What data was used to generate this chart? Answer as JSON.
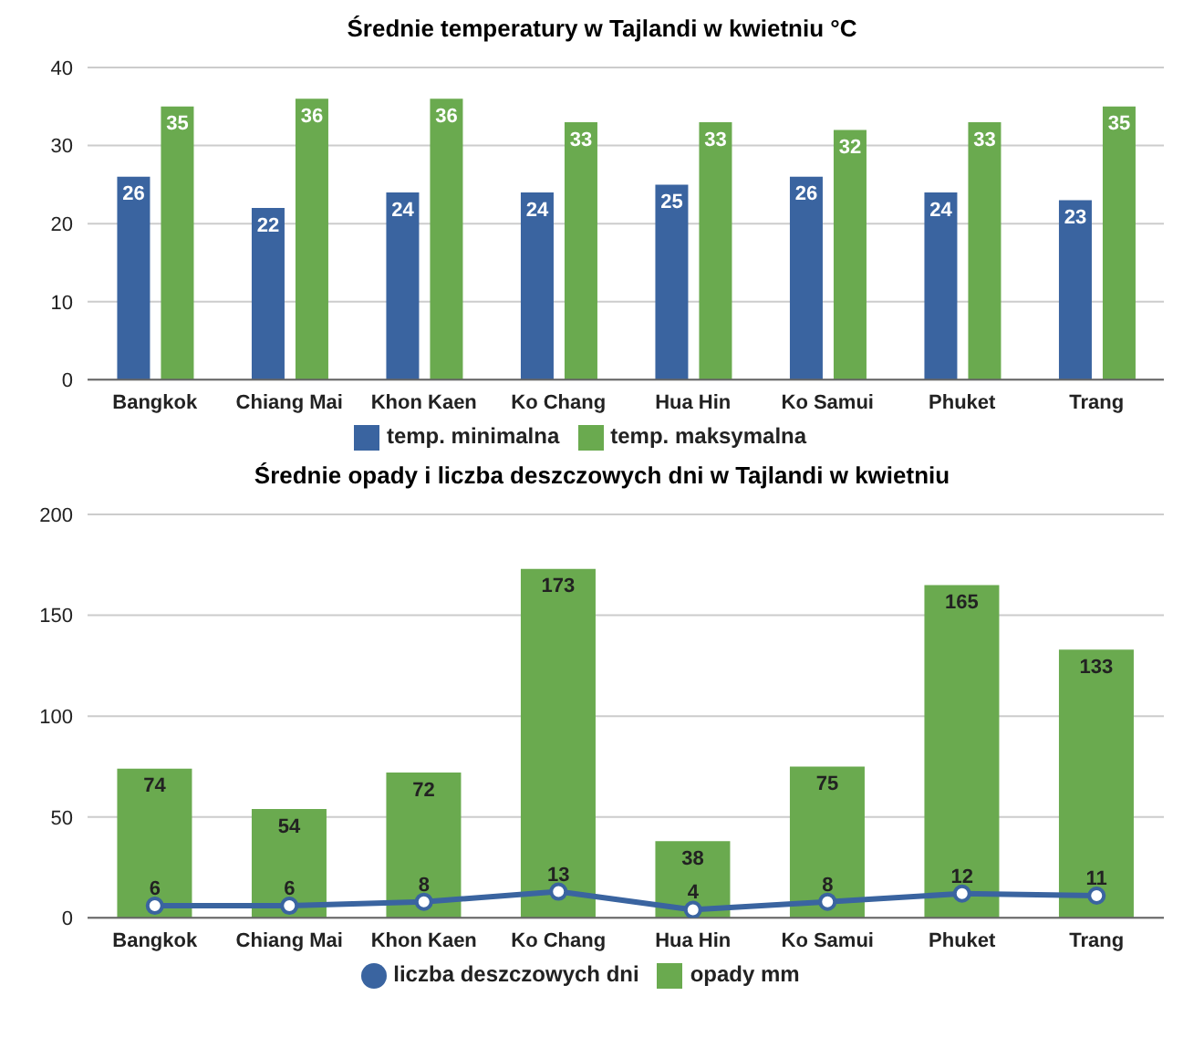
{
  "chart_data": [
    {
      "type": "bar",
      "title": "Średnie temperatury w Tajlandi w kwietniu °C",
      "categories": [
        "Bangkok",
        "Chiang Mai",
        "Khon Kaen",
        "Ko Chang",
        "Hua Hin",
        "Ko Samui",
        "Phuket",
        "Trang"
      ],
      "series": [
        {
          "name": "temp. minimalna",
          "color": "#3a64a0",
          "values": [
            26,
            22,
            24,
            24,
            25,
            26,
            24,
            23
          ]
        },
        {
          "name": "temp. maksymalna",
          "color": "#6aaa4f",
          "values": [
            35,
            36,
            36,
            33,
            33,
            32,
            33,
            35
          ]
        }
      ],
      "ylim": [
        0,
        40
      ],
      "yticks": [
        0,
        10,
        20,
        30,
        40
      ],
      "grid": "y",
      "legend": "bottom",
      "data_labels": true
    },
    {
      "type": "bar",
      "title": "Średnie opady i liczba deszczowych dni w Tajlandi w kwietniu",
      "categories": [
        "Bangkok",
        "Chiang Mai",
        "Khon Kaen",
        "Ko Chang",
        "Hua Hin",
        "Ko Samui",
        "Phuket",
        "Trang"
      ],
      "series": [
        {
          "name": "liczba deszczowych dni",
          "type": "line",
          "color": "#3a64a0",
          "values": [
            6,
            6,
            8,
            13,
            4,
            8,
            12,
            11
          ]
        },
        {
          "name": "opady mm",
          "color": "#6aaa4f",
          "values": [
            74,
            54,
            72,
            173,
            38,
            75,
            165,
            133
          ]
        }
      ],
      "ylim": [
        0,
        200
      ],
      "yticks": [
        0,
        50,
        100,
        150,
        200
      ],
      "grid": "y",
      "legend": "bottom",
      "marker": "circle",
      "data_labels": true
    }
  ]
}
